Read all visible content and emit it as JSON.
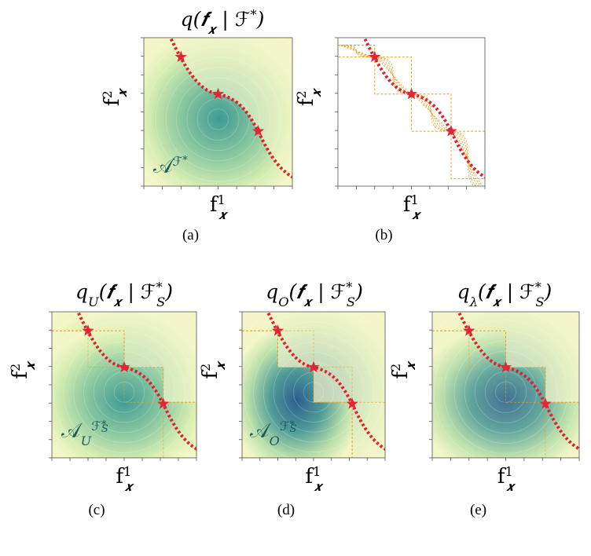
{
  "panels": [
    {
      "caption": "(a)",
      "title": {
        "func": "q",
        "open": "(",
        "f": "𝒇",
        "f_sub": "𝒙",
        "bar": " | ",
        "set": "ℱ",
        "set_sup": "*",
        "close": ")"
      },
      "x_label": {
        "base": "f",
        "sup": "1",
        "sub": "𝒙"
      },
      "y_label": {
        "base": "f",
        "sup": "2",
        "sub": "𝒙"
      },
      "region_label": {
        "base": "𝒜",
        "sup": "ℱ",
        "sup_sup": "*"
      }
    },
    {
      "caption": "(b)",
      "x_label": {
        "base": "f",
        "sup": "1",
        "sub": "𝒙"
      },
      "y_label": {
        "base": "f",
        "sup": "2",
        "sub": "𝒙"
      }
    },
    {
      "caption": "(c)",
      "title": {
        "func": "q",
        "func_sub": "U",
        "open": "(",
        "f": "𝒇",
        "f_sub": "𝒙",
        "bar": " | ",
        "set": "ℱ",
        "set_sup": "*",
        "set_sub": "S",
        "close": ")"
      },
      "x_label": {
        "base": "f",
        "sup": "1",
        "sub": "𝒙"
      },
      "y_label": {
        "base": "f",
        "sup": "2",
        "sub": "𝒙"
      },
      "region_label": {
        "base": "𝒜",
        "sub": "U",
        "sup": "ℱ",
        "sup_sup": "*",
        "sup_sub": "S"
      }
    },
    {
      "caption": "(d)",
      "title": {
        "func": "q",
        "func_sub": "O",
        "open": "(",
        "f": "𝒇",
        "f_sub": "𝒙",
        "bar": " | ",
        "set": "ℱ",
        "set_sup": "*",
        "set_sub": "S",
        "close": ")"
      },
      "x_label": {
        "base": "f",
        "sup": "1",
        "sub": "𝒙"
      },
      "y_label": {
        "base": "f",
        "sup": "2",
        "sub": "𝒙"
      },
      "region_label": {
        "base": "𝒜",
        "sub": "O",
        "sup": "ℱ",
        "sup_sup": "*",
        "sup_sub": "S"
      }
    },
    {
      "caption": "(e)",
      "title": {
        "func": "q",
        "func_sub": "λ",
        "open": "(",
        "f": "𝒇",
        "f_sub": "𝒙",
        "bar": " | ",
        "set": "ℱ",
        "set_sup": "*",
        "set_sub": "S",
        "close": ")"
      },
      "x_label": {
        "base": "f",
        "sup": "1",
        "sub": "𝒙"
      },
      "y_label": {
        "base": "f",
        "sup": "2",
        "sub": "𝒙"
      }
    }
  ]
}
